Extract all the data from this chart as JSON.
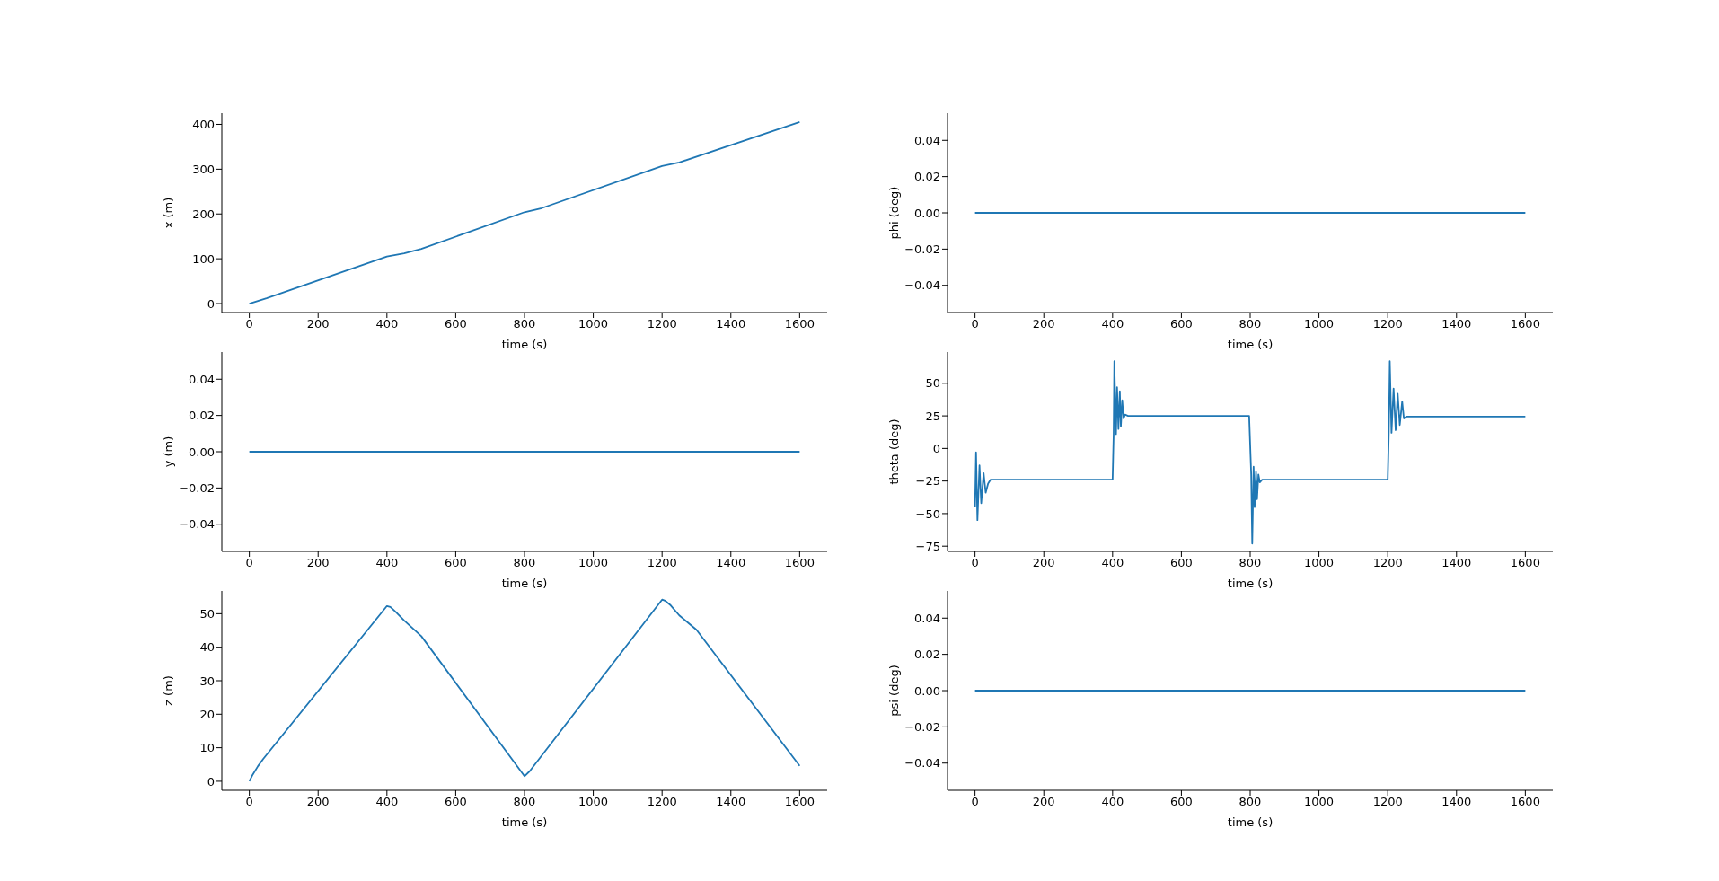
{
  "chart_data": [
    {
      "type": "line",
      "xlabel": "time (s)",
      "ylabel": "x (m)",
      "color": "#1f77b4",
      "xlim": [
        -80,
        1680
      ],
      "xticks": [
        0,
        200,
        400,
        600,
        800,
        1000,
        1200,
        1400,
        1600
      ],
      "ylim": [
        -20,
        425
      ],
      "yticks": [
        0,
        100,
        200,
        300,
        400
      ],
      "x": [
        0,
        50,
        400,
        450,
        500,
        800,
        850,
        1200,
        1250,
        1600
      ],
      "values": [
        0,
        12,
        105,
        112,
        122,
        204,
        213,
        307,
        315,
        405
      ]
    },
    {
      "type": "line",
      "xlabel": "time (s)",
      "ylabel": "phi (deg)",
      "color": "#1f77b4",
      "xlim": [
        -80,
        1680
      ],
      "xticks": [
        0,
        200,
        400,
        600,
        800,
        1000,
        1200,
        1400,
        1600
      ],
      "ylim": [
        -0.055,
        0.055
      ],
      "yticks": [
        {
          "value": -0.04,
          "label": "−0.04"
        },
        {
          "value": -0.02,
          "label": "−0.02"
        },
        {
          "value": 0,
          "label": "0.00"
        },
        {
          "value": 0.02,
          "label": "0.02"
        },
        {
          "value": 0.04,
          "label": "0.04"
        }
      ],
      "x": [
        0,
        1600
      ],
      "values": [
        0,
        0
      ]
    },
    {
      "type": "line",
      "xlabel": "time (s)",
      "ylabel": "y (m)",
      "color": "#1f77b4",
      "xlim": [
        -80,
        1680
      ],
      "xticks": [
        0,
        200,
        400,
        600,
        800,
        1000,
        1200,
        1400,
        1600
      ],
      "ylim": [
        -0.055,
        0.055
      ],
      "yticks": [
        {
          "value": -0.04,
          "label": "−0.04"
        },
        {
          "value": -0.02,
          "label": "−0.02"
        },
        {
          "value": 0,
          "label": "0.00"
        },
        {
          "value": 0.02,
          "label": "0.02"
        },
        {
          "value": 0.04,
          "label": "0.04"
        }
      ],
      "x": [
        0,
        1600
      ],
      "values": [
        0,
        0
      ]
    },
    {
      "type": "line",
      "xlabel": "time (s)",
      "ylabel": "theta (deg)",
      "color": "#1f77b4",
      "xlim": [
        -80,
        1680
      ],
      "xticks": [
        0,
        200,
        400,
        600,
        800,
        1000,
        1200,
        1400,
        1600
      ],
      "ylim": [
        -79,
        74
      ],
      "yticks": [
        {
          "value": -75,
          "label": "−75"
        },
        {
          "value": -50,
          "label": "−50"
        },
        {
          "value": -25,
          "label": "−25"
        },
        0,
        25,
        50
      ],
      "x": [
        0,
        3,
        7,
        13,
        18,
        25,
        31,
        38,
        45,
        400,
        403,
        405,
        410,
        413,
        417,
        421,
        424,
        428,
        432,
        436,
        445,
        797,
        803,
        806,
        810,
        813,
        817,
        820,
        824,
        828,
        835,
        1200,
        1203,
        1206,
        1211,
        1217,
        1223,
        1229,
        1235,
        1242,
        1247,
        1255,
        1600
      ],
      "values": [
        -45,
        -3,
        -55,
        -13,
        -42,
        -19,
        -34,
        -27,
        -24,
        -24,
        10,
        67,
        11,
        47,
        15,
        44,
        17,
        37,
        23,
        26,
        25,
        25,
        -20,
        -73,
        -14,
        -45,
        -18,
        -39,
        -20,
        -26,
        -24,
        -24,
        10,
        67,
        12,
        46,
        14,
        42,
        18,
        36,
        23,
        24.5,
        24.5
      ]
    },
    {
      "type": "line",
      "xlabel": "time (s)",
      "ylabel": "z (m)",
      "color": "#1f77b4",
      "xlim": [
        -80,
        1680
      ],
      "xticks": [
        0,
        200,
        400,
        600,
        800,
        1000,
        1200,
        1400,
        1600
      ],
      "ylim": [
        -2.7,
        56.8
      ],
      "yticks": [
        0,
        10,
        20,
        30,
        40,
        50
      ],
      "x": [
        0,
        10,
        25,
        40,
        400,
        410,
        425,
        450,
        500,
        800,
        815,
        1200,
        1210,
        1225,
        1250,
        1300,
        1600
      ],
      "values": [
        0,
        2,
        4.5,
        6.6,
        52.3,
        52,
        50.6,
        48,
        43.3,
        1.5,
        3,
        54.2,
        53.8,
        52.5,
        49.5,
        45.2,
        4.6
      ]
    },
    {
      "type": "line",
      "xlabel": "time (s)",
      "ylabel": "psi (deg)",
      "color": "#1f77b4",
      "xlim": [
        -80,
        1680
      ],
      "xticks": [
        0,
        200,
        400,
        600,
        800,
        1000,
        1200,
        1400,
        1600
      ],
      "ylim": [
        -0.055,
        0.055
      ],
      "yticks": [
        {
          "value": -0.04,
          "label": "−0.04"
        },
        {
          "value": -0.02,
          "label": "−0.02"
        },
        {
          "value": 0,
          "label": "0.00"
        },
        {
          "value": 0.02,
          "label": "0.02"
        },
        {
          "value": 0.04,
          "label": "0.04"
        }
      ],
      "x": [
        0,
        1600
      ],
      "values": [
        0,
        0
      ]
    }
  ]
}
